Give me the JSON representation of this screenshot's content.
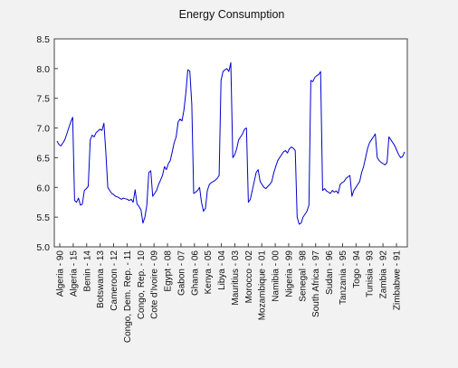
{
  "chart_data": {
    "type": "line",
    "title": "Energy Consumption",
    "xlabel": "",
    "ylabel": "",
    "ylim": [
      5.0,
      8.5
    ],
    "yticks": [
      "5.0",
      "5.5",
      "6.0",
      "6.5",
      "7.0",
      "7.5",
      "8.0",
      "8.5"
    ],
    "grid": false,
    "legend": "none",
    "line_color": "#0000cc",
    "category_labels": [
      "Algeria - 90",
      "Algeria - 15",
      "Benin - 14",
      "Botswana - 13",
      "Cameroon - 12",
      "Congo, Dem. Rep. - 11",
      "Congo, Rep. - 10",
      "Cote d'Ivoire - 09",
      "Egypt - 08",
      "Gabon - 07",
      "Ghana - 06",
      "Kenya - 05",
      "Libya - 04",
      "Mauritius - 03",
      "Morocco - 02",
      "Mozambique - 01",
      "Namibia - 00",
      "Nigeria - 99",
      "Senegal - 98",
      "South Africa - 97",
      "Sudan - 96",
      "Tanzania - 95",
      "Togo - 94",
      "Tunisia - 93",
      "Zambia - 92",
      "Zimbabwe - 91"
    ],
    "series": [
      {
        "values": [
          6.78,
          6.72,
          6.7,
          6.75,
          6.8,
          6.9,
          7.0,
          7.1,
          7.18,
          5.78,
          5.75,
          5.82,
          5.7,
          5.72,
          5.95,
          5.98,
          6.02,
          6.8,
          6.88,
          6.85,
          6.92,
          6.95,
          6.98,
          6.96,
          7.08,
          6.6,
          6.0,
          5.95,
          5.9,
          5.88,
          5.85,
          5.84,
          5.82,
          5.8,
          5.82,
          5.81,
          5.8,
          5.78,
          5.8,
          5.75,
          5.96,
          5.72,
          5.68,
          5.62,
          5.4,
          5.5,
          5.7,
          6.25,
          6.28,
          5.85,
          5.9,
          5.95,
          6.05,
          6.12,
          6.2,
          6.35,
          6.3,
          6.4,
          6.45,
          6.6,
          6.75,
          6.85,
          7.1,
          7.15,
          7.12,
          7.3,
          7.6,
          7.98,
          7.96,
          7.4,
          5.9,
          5.92,
          5.95,
          6.0,
          5.75,
          5.6,
          5.65,
          5.95,
          6.05,
          6.08,
          6.1,
          6.12,
          6.15,
          6.2,
          7.8,
          7.95,
          7.98,
          8.0,
          7.95,
          8.1,
          6.5,
          6.55,
          6.65,
          6.8,
          6.85,
          6.9,
          6.98,
          7.0,
          5.75,
          5.8,
          5.95,
          6.1,
          6.25,
          6.3,
          6.1,
          6.05,
          6.0,
          5.98,
          6.02,
          6.05,
          6.1,
          6.25,
          6.35,
          6.45,
          6.5,
          6.55,
          6.6,
          6.62,
          6.58,
          6.65,
          6.68,
          6.66,
          6.62,
          5.5,
          5.38,
          5.4,
          5.5,
          5.55,
          5.6,
          5.7,
          7.8,
          7.78,
          7.85,
          7.88,
          7.9,
          7.95,
          5.95,
          5.98,
          5.94,
          5.92,
          5.9,
          5.95,
          5.92,
          5.94,
          5.9,
          6.05,
          6.08,
          6.1,
          6.15,
          6.18,
          6.2,
          5.85,
          5.95,
          6.0,
          6.05,
          6.1,
          6.25,
          6.35,
          6.5,
          6.65,
          6.75,
          6.8,
          6.85,
          6.9,
          6.5,
          6.45,
          6.42,
          6.4,
          6.38,
          6.42,
          6.85,
          6.8,
          6.75,
          6.7,
          6.62,
          6.55,
          6.5,
          6.52,
          6.6
        ]
      }
    ]
  }
}
